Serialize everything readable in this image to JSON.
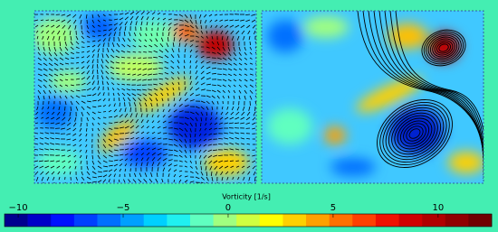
{
  "colorbar": {
    "label": "Vorticity [1/s]",
    "lim": [
      -10.65,
      12.55
    ],
    "ticks": [
      {
        "value": -10,
        "label": "−10"
      },
      {
        "value": -5,
        "label": "−5"
      },
      0,
      5,
      10
    ],
    "colors": [
      "#00008f",
      "#0000c8",
      "#0010ff",
      "#0040ff",
      "#0070ff",
      "#00a0ff",
      "#00d0ff",
      "#20f0f0",
      "#60ffc0",
      "#a0ff80",
      "#d0ff40",
      "#ffff00",
      "#ffd000",
      "#ffa000",
      "#ff7000",
      "#ff4000",
      "#f01000",
      "#d00000",
      "#b00000",
      "#900000",
      "#700000"
    ]
  }
}
